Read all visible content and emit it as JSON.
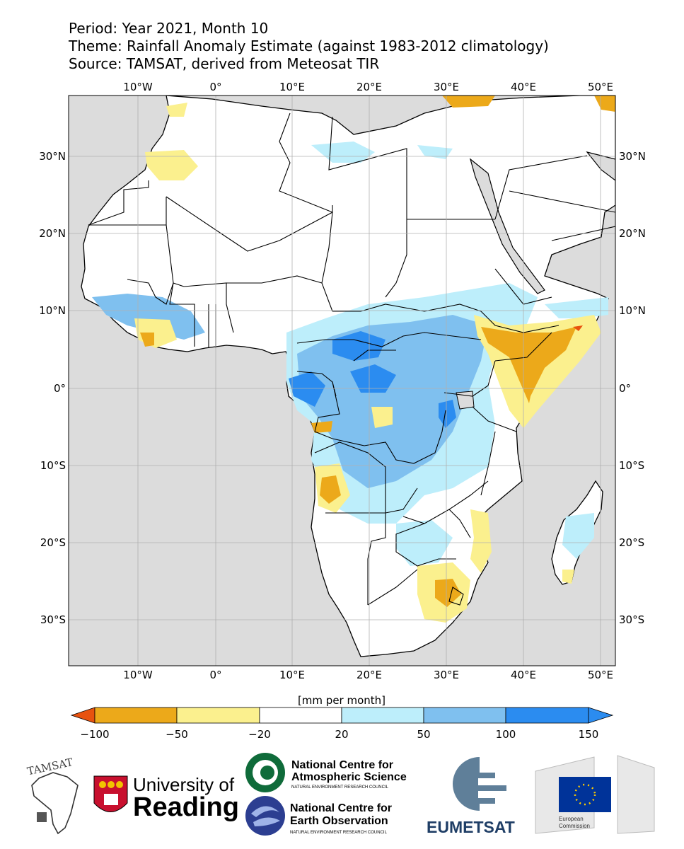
{
  "header": {
    "period": "Period: Year 2021, Month 10",
    "theme": "Theme: Rainfall Anomaly Estimate (against 1983-2012 climatology)",
    "source": "Source: TAMSAT, derived from Meteosat TIR"
  },
  "map": {
    "lon_ticks": [
      "10°W",
      "0°",
      "10°E",
      "20°E",
      "30°E",
      "40°E",
      "50°E"
    ],
    "lat_ticks_left": [
      "30°N",
      "20°N",
      "10°N",
      "0°",
      "10°S",
      "20°S",
      "30°S"
    ],
    "lat_ticks_right": [
      "30°N",
      "20°N",
      "10°N",
      "0°",
      "10°S",
      "20°S",
      "30°S"
    ],
    "ocean_color": "#dcdcdc",
    "land_color": "#ffffff"
  },
  "colorbar": {
    "units": "[mm per month]",
    "tick_labels": [
      "−100",
      "−50",
      "−20",
      "20",
      "50",
      "100",
      "150"
    ],
    "colors": [
      "#e8520f",
      "#eca91a",
      "#fbf08e",
      "#ffffff",
      "#bdeefb",
      "#7fc0ef",
      "#2b8cf0",
      "#2b8cf0"
    ]
  },
  "logos": {
    "tamsat": "TAMSAT",
    "reading_line1": "University of",
    "reading_line2": "Reading",
    "ncas_line1": "National Centre for",
    "ncas_line2": "Atmospheric Science",
    "ncas_sub": "NATURAL ENVIRONMENT RESEARCH COUNCIL",
    "nceo_line1": "National Centre for",
    "nceo_line2": "Earth Observation",
    "nceo_sub": "NATURAL ENVIRONMENT RESEARCH COUNCIL",
    "eumetsat": "EUMETSAT",
    "ec_line1": "European",
    "ec_line2": "Commission"
  }
}
